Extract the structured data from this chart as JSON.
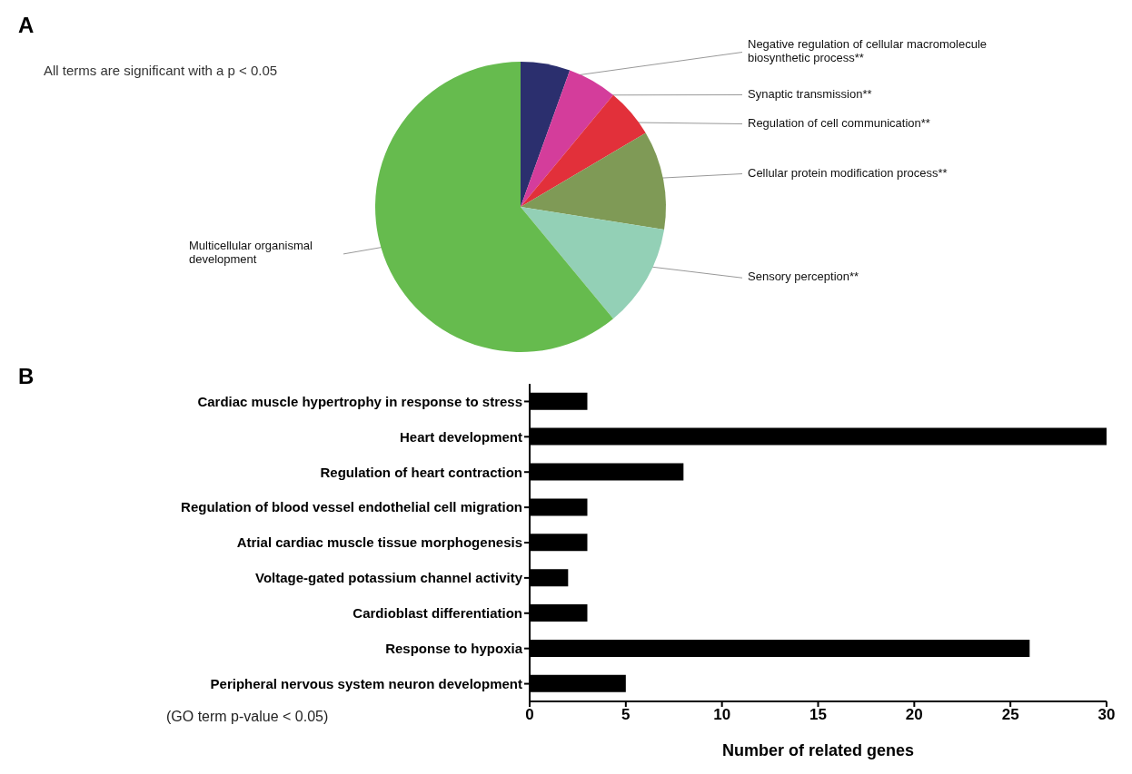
{
  "chart_data": [
    {
      "type": "pie",
      "annotations": [
        "A",
        "All terms are significant with a p < 0.05"
      ],
      "categories": [
        "Negative regulation of cellular macromolecule biosynthetic process**",
        "Synaptic transmission**",
        "Regulation of cell communication**",
        "Cellular protein modification process**",
        "Sensory perception**",
        "Multicellular organismal development"
      ],
      "values": [
        5.5,
        5.5,
        5.5,
        11,
        11.5,
        61
      ],
      "colors": [
        "#2b2f6e",
        "#d43d9b",
        "#e2303a",
        "#7f9a56",
        "#93d0b6",
        "#66bb4e"
      ]
    },
    {
      "type": "bar",
      "orientation": "horizontal",
      "annotations": [
        "B",
        "(GO term p-value < 0.05)"
      ],
      "categories": [
        "Cardiac muscle hypertrophy in response to stress",
        "Heart development",
        "Regulation of heart contraction",
        "Regulation of blood vessel endothelial cell migration",
        "Atrial cardiac muscle tissue morphogenesis",
        "Voltage-gated potassium channel activity",
        "Cardioblast differentiation",
        "Response to hypoxia",
        "Peripheral nervous system neuron development"
      ],
      "values": [
        3,
        30,
        8,
        3,
        3,
        2,
        3,
        26,
        5
      ],
      "color": "#000000",
      "xlabel": "Number of related genes",
      "xlim": [
        0,
        30
      ],
      "xticks": [
        0,
        5,
        10,
        15,
        20,
        25,
        30
      ]
    }
  ]
}
